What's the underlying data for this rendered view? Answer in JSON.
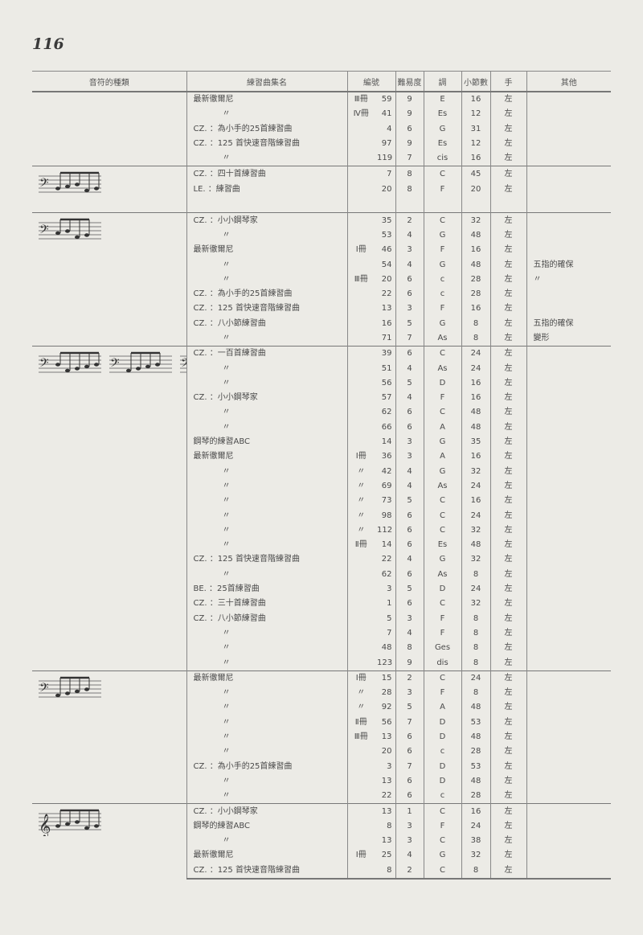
{
  "page_number": "116",
  "headers": [
    "音符的種類",
    "練習曲集名",
    "編號",
    "難易度",
    "調",
    "小節數",
    "手",
    "其他"
  ],
  "groups": [
    {
      "figures": [],
      "rows": [
        [
          "最新徹爾尼",
          "Ⅲ冊",
          "59",
          "9",
          "E",
          "16",
          "左",
          ""
        ],
        [
          "〃",
          "Ⅳ冊",
          "41",
          "9",
          "Es",
          "12",
          "左",
          ""
        ],
        [
          "CZ. ：為小手的25首練習曲",
          "",
          "4",
          "6",
          "G",
          "31",
          "左",
          ""
        ],
        [
          "CZ. ：125 首快速音階練習曲",
          "",
          "97",
          "9",
          "Es",
          "12",
          "左",
          ""
        ],
        [
          "〃",
          "",
          "119",
          "7",
          "cis",
          "16",
          "左",
          ""
        ]
      ]
    },
    {
      "figures": [
        "bass-clef-notes"
      ],
      "rows": [
        [
          "CZ. ：四十首練習曲",
          "",
          "7",
          "8",
          "C",
          "45",
          "左",
          ""
        ],
        [
          "LE. ：練習曲",
          "",
          "20",
          "8",
          "F",
          "20",
          "左",
          ""
        ],
        [
          "",
          "",
          "",
          "",
          "",
          "",
          "",
          ""
        ]
      ]
    },
    {
      "figures": [
        "bass-clef-notes"
      ],
      "rows": [
        [
          "CZ. ：小小鋼琴家",
          "",
          "35",
          "2",
          "C",
          "32",
          "左",
          ""
        ],
        [
          "〃",
          "",
          "53",
          "4",
          "G",
          "48",
          "左",
          ""
        ],
        [
          "最新徹爾尼",
          "Ⅰ冊",
          "46",
          "3",
          "F",
          "16",
          "左",
          ""
        ],
        [
          "〃",
          "",
          "54",
          "4",
          "G",
          "48",
          "左",
          "五指的確保"
        ],
        [
          "〃",
          "Ⅲ冊",
          "20",
          "6",
          "c",
          "28",
          "左",
          "〃"
        ],
        [
          "CZ. ：為小手的25首練習曲",
          "",
          "22",
          "6",
          "c",
          "28",
          "左",
          ""
        ],
        [
          "CZ. ：125 首快速音階練習曲",
          "",
          "13",
          "3",
          "F",
          "16",
          "左",
          ""
        ],
        [
          "CZ. ：八小節練習曲",
          "",
          "16",
          "5",
          "G",
          "8",
          "左",
          "五指的確保"
        ],
        [
          "〃",
          "",
          "71",
          "7",
          "As",
          "8",
          "左",
          "變形"
        ]
      ]
    },
    {
      "figures": [
        "bass-clef-notes",
        "bass-clef-notes",
        "bass-clef-notes",
        "bass-clef-notes",
        "bass-clef-notes"
      ],
      "rows": [
        [
          "CZ. ：一百首練習曲",
          "",
          "39",
          "6",
          "C",
          "24",
          "左",
          ""
        ],
        [
          "〃",
          "",
          "51",
          "4",
          "As",
          "24",
          "左",
          ""
        ],
        [
          "〃",
          "",
          "56",
          "5",
          "D",
          "16",
          "左",
          ""
        ],
        [
          "CZ. ：小小鋼琴家",
          "",
          "57",
          "4",
          "F",
          "16",
          "左",
          ""
        ],
        [
          "〃",
          "",
          "62",
          "6",
          "C",
          "48",
          "左",
          ""
        ],
        [
          "〃",
          "",
          "66",
          "6",
          "A",
          "48",
          "左",
          ""
        ],
        [
          "鋼琴的練習ABC",
          "",
          "14",
          "3",
          "G",
          "35",
          "左",
          ""
        ],
        [
          "最新徹爾尼",
          "Ⅰ冊",
          "36",
          "3",
          "A",
          "16",
          "左",
          ""
        ],
        [
          "〃",
          "〃",
          "42",
          "4",
          "G",
          "32",
          "左",
          ""
        ],
        [
          "〃",
          "〃",
          "69",
          "4",
          "As",
          "24",
          "左",
          ""
        ],
        [
          "〃",
          "〃",
          "73",
          "5",
          "C",
          "16",
          "左",
          ""
        ],
        [
          "〃",
          "〃",
          "98",
          "6",
          "C",
          "24",
          "左",
          ""
        ],
        [
          "〃",
          "〃",
          "112",
          "6",
          "C",
          "32",
          "左",
          ""
        ],
        [
          "〃",
          "Ⅱ冊",
          "14",
          "6",
          "Es",
          "48",
          "左",
          ""
        ],
        [
          "CZ. ：125 首快速音階練習曲",
          "",
          "22",
          "4",
          "G",
          "32",
          "左",
          ""
        ],
        [
          "〃",
          "",
          "62",
          "6",
          "As",
          "8",
          "左",
          ""
        ],
        [
          "BE. ：25首練習曲",
          "",
          "3",
          "5",
          "D",
          "24",
          "左",
          ""
        ],
        [
          "CZ. ：三十首練習曲",
          "",
          "1",
          "6",
          "C",
          "32",
          "左",
          ""
        ],
        [
          "CZ. ：八小節練習曲",
          "",
          "5",
          "3",
          "F",
          "8",
          "左",
          ""
        ],
        [
          "〃",
          "",
          "7",
          "4",
          "F",
          "8",
          "左",
          ""
        ],
        [
          "〃",
          "",
          "48",
          "8",
          "Ges",
          "8",
          "左",
          ""
        ],
        [
          "〃",
          "",
          "123",
          "9",
          "dis",
          "8",
          "左",
          ""
        ]
      ]
    },
    {
      "figures": [
        "bass-clef-notes"
      ],
      "rows": [
        [
          "最新徹爾尼",
          "Ⅰ冊",
          "15",
          "2",
          "C",
          "24",
          "左",
          ""
        ],
        [
          "〃",
          "〃",
          "28",
          "3",
          "F",
          "8",
          "左",
          ""
        ],
        [
          "〃",
          "〃",
          "92",
          "5",
          "A",
          "48",
          "左",
          ""
        ],
        [
          "〃",
          "Ⅱ冊",
          "56",
          "7",
          "D",
          "53",
          "左",
          ""
        ],
        [
          "〃",
          "Ⅲ冊",
          "13",
          "6",
          "D",
          "48",
          "左",
          ""
        ],
        [
          "〃",
          "",
          "20",
          "6",
          "c",
          "28",
          "左",
          ""
        ],
        [
          "CZ. ：為小手的25首練習曲",
          "",
          "3",
          "7",
          "D",
          "53",
          "左",
          ""
        ],
        [
          "〃",
          "",
          "13",
          "6",
          "D",
          "48",
          "左",
          ""
        ],
        [
          "〃",
          "",
          "22",
          "6",
          "c",
          "28",
          "左",
          ""
        ]
      ]
    },
    {
      "figures": [
        "treble-clef-notes"
      ],
      "rows": [
        [
          "CZ. ：小小鋼琴家",
          "",
          "13",
          "1",
          "C",
          "16",
          "左",
          ""
        ],
        [
          "鋼琴的練習ABC",
          "",
          "8",
          "3",
          "F",
          "24",
          "左",
          ""
        ],
        [
          "〃",
          "",
          "13",
          "3",
          "C",
          "38",
          "左",
          ""
        ],
        [
          "最新徹爾尼",
          "Ⅰ冊",
          "25",
          "4",
          "G",
          "32",
          "左",
          ""
        ],
        [
          "CZ. ：125 首快速音階練習曲",
          "",
          "8",
          "2",
          "C",
          "8",
          "左",
          ""
        ]
      ]
    }
  ]
}
